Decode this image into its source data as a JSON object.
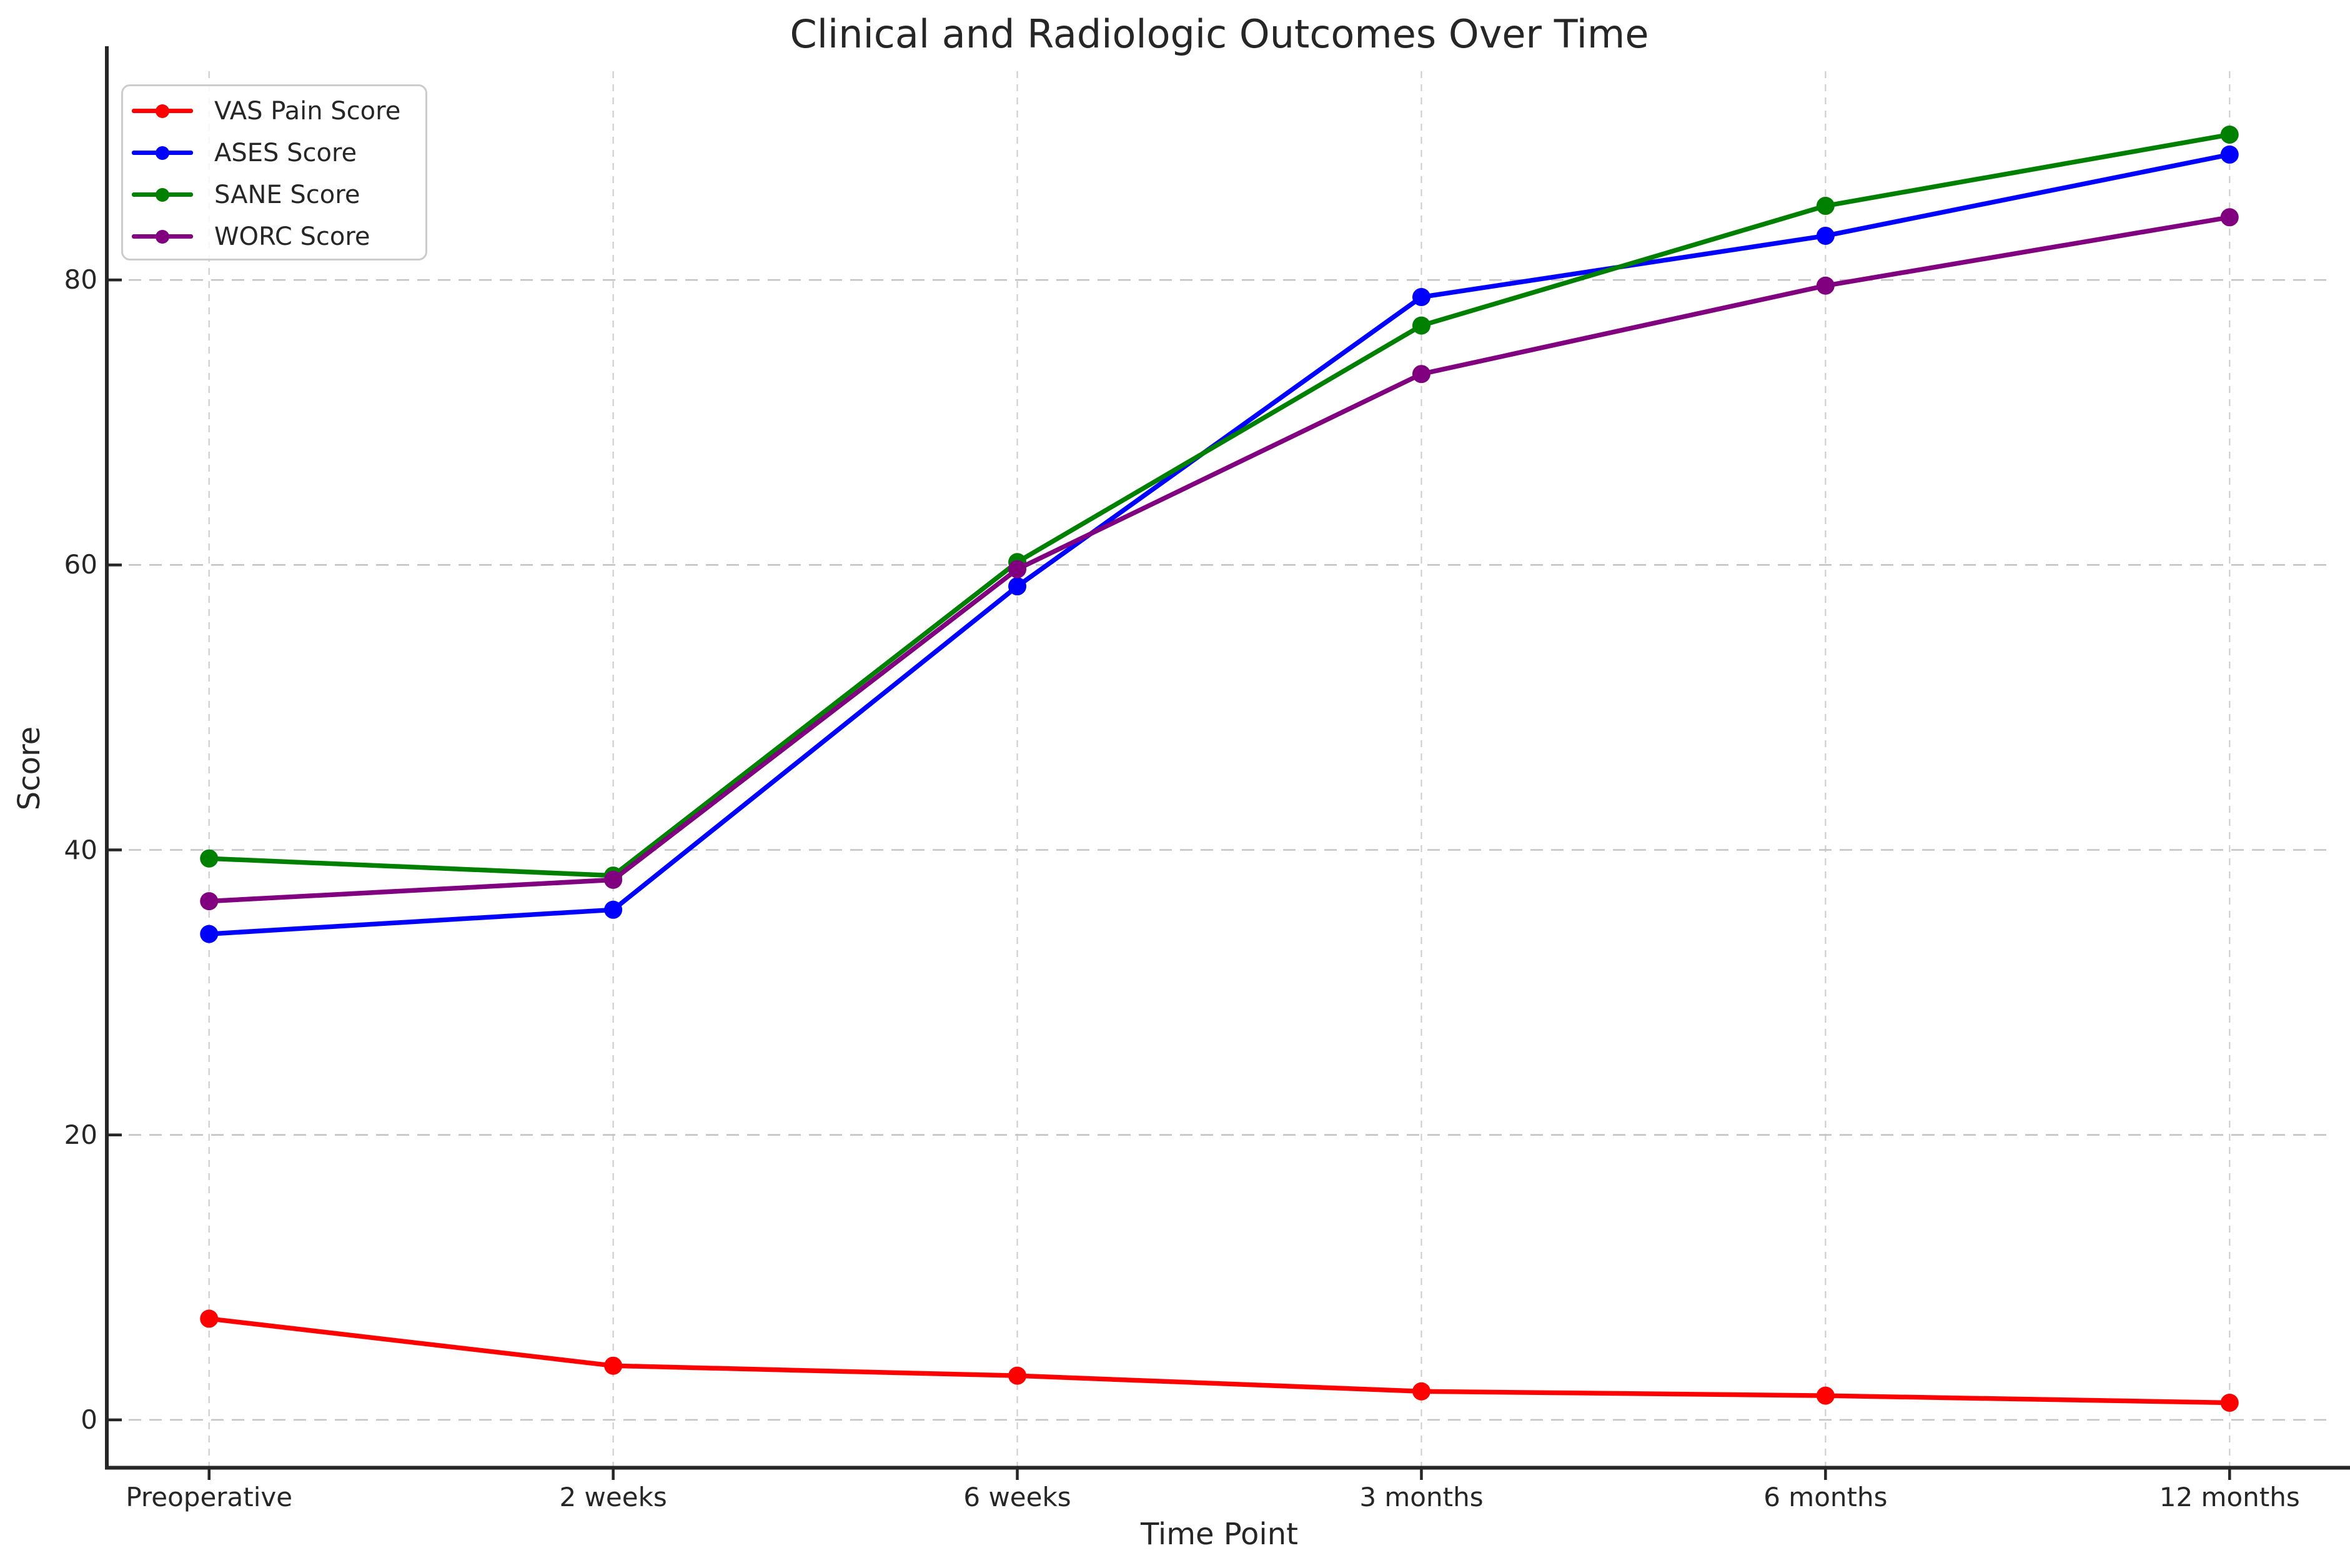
{
  "page": {
    "background_color": "#ffffff",
    "text_color": "#262626",
    "spine_color": "#262626",
    "grid_color": "#c4c4c4"
  },
  "chart_data": {
    "type": "line",
    "title": "Clinical and Radiologic Outcomes Over Time",
    "xlabel": "Time Point",
    "ylabel": "Score",
    "categories": [
      "Preoperative",
      "2 weeks",
      "6 weeks",
      "3 months",
      "6 months",
      "12 months"
    ],
    "series": [
      {
        "name": "VAS Pain Score",
        "color": "#ff0000",
        "values": [
          7.1,
          3.8,
          3.1,
          2.0,
          1.7,
          1.2
        ]
      },
      {
        "name": "ASES Score",
        "color": "#0000ff",
        "values": [
          34.1,
          35.8,
          58.5,
          78.8,
          83.1,
          88.8
        ]
      },
      {
        "name": "SANE Score",
        "color": "#008000",
        "values": [
          39.4,
          38.2,
          60.2,
          76.8,
          85.2,
          90.2
        ]
      },
      {
        "name": "WORC Score",
        "color": "#800080",
        "values": [
          36.4,
          37.9,
          59.7,
          73.4,
          79.6,
          84.4
        ]
      }
    ],
    "yticks": [
      0,
      20,
      40,
      60,
      80
    ],
    "ylim": [
      -3.25,
      94.65
    ],
    "grid": true,
    "grid_style": "dashed",
    "legend_position": "upper left",
    "marker": "circle"
  }
}
